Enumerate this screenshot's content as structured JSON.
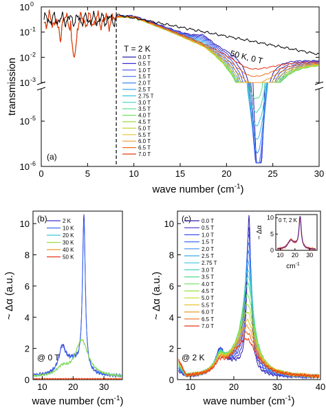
{
  "figure": {
    "panels": [
      "a",
      "b",
      "c"
    ]
  },
  "chart_data": [
    {
      "panel": "(a)",
      "type": "line",
      "xlabel": "wave number (cm",
      "xlabel_sup": "-1",
      "xlabel_end": ")",
      "ylabel": "transmission",
      "xlim": [
        0,
        30
      ],
      "y_scale": "log (broken axis)",
      "y_upper_range": [
        0.001,
        1
      ],
      "y_lower_range": [
        1e-06,
        0.0001
      ],
      "x_ticks": [
        "0",
        "5",
        "10",
        "15",
        "20",
        "25",
        "30"
      ],
      "y_upper_ticks": [
        "10",
        "10",
        "10",
        "10"
      ],
      "y_upper_exps": [
        "0",
        "-1",
        "-2",
        "-3"
      ],
      "y_lower_ticks": [
        "10",
        "10"
      ],
      "y_lower_exps": [
        "-5",
        "-6"
      ],
      "dashed_vline_x": 8.1,
      "annotations": {
        "temp": "T = 2 K",
        "ref": "50 K, 0 T"
      },
      "legend": [
        "0.0 T",
        "0.5 T",
        "1.0 T",
        "1.5 T",
        "2.0 T",
        "2.5 T",
        "2.75 T",
        "3.0 T",
        "3.5 T",
        "4.0 T",
        "4.5 T",
        "5.0 T",
        "5.5 T",
        "6.0 T",
        "6.5 T",
        "7.0 T"
      ],
      "colors": [
        "#2b1ea8",
        "#3a2fd0",
        "#3f4de6",
        "#3c6cf0",
        "#3b8bf2",
        "#3aa8ee",
        "#3cc3dc",
        "#3fd3b8",
        "#50da8a",
        "#6ee05e",
        "#98e03c",
        "#c3d834",
        "#e6c22c",
        "#f09a24",
        "#ee6a1c",
        "#e43418"
      ],
      "series": [
        {
          "name": "50 K, 0 T",
          "x": [
            8,
            10,
            12,
            14,
            16,
            18,
            20,
            22,
            24,
            26,
            28,
            30
          ],
          "y": [
            0.55,
            0.48,
            0.42,
            0.35,
            0.26,
            0.18,
            0.12,
            0.085,
            0.06,
            0.04,
            0.025,
            0.013
          ]
        },
        {
          "name": "0.0 T",
          "x": [
            8,
            10,
            12,
            14,
            15,
            16,
            17,
            18,
            19,
            20,
            21,
            22,
            22.5,
            23,
            23.5,
            24,
            24.5,
            25,
            26,
            27,
            28,
            29,
            30
          ],
          "y": [
            0.45,
            0.35,
            0.25,
            0.12,
            0.06,
            0.025,
            0.015,
            0.02,
            0.03,
            0.035,
            0.025,
            0.01,
            0.002,
            0.0001,
            9e-07,
            5e-05,
            0.0015,
            0.004,
            0.008,
            0.01,
            0.01,
            0.01,
            0.01
          ]
        },
        {
          "name": "7.0 T",
          "x": [
            8,
            10,
            12,
            14,
            15,
            16,
            17,
            18,
            19,
            20,
            21,
            22,
            23,
            24,
            25,
            26,
            27,
            28,
            29,
            30
          ],
          "y": [
            0.45,
            0.35,
            0.25,
            0.12,
            0.06,
            0.03,
            0.02,
            0.017,
            0.015,
            0.012,
            0.009,
            0.006,
            0.005,
            0.006,
            0.008,
            0.01,
            0.011,
            0.011,
            0.011,
            0.011
          ]
        }
      ]
    },
    {
      "panel": "(b)",
      "type": "line",
      "xlabel": "wave number (cm",
      "xlabel_sup": "-1",
      "xlabel_end": ")",
      "ylabel": "~ Δα (a.u.)",
      "xlim": [
        7,
        36
      ],
      "ylim": [
        0,
        10.8
      ],
      "x_ticks": [
        "10",
        "20",
        "30"
      ],
      "y_ticks": [
        "0",
        "2",
        "4",
        "6",
        "8",
        "10"
      ],
      "annotation": "@ 0 T",
      "legend": [
        "2 K",
        "10 K",
        "20 K",
        "30 K",
        "40 K",
        "50 K"
      ],
      "colors": [
        "#3a2fd0",
        "#3c6cf0",
        "#3cc3dc",
        "#98e03c",
        "#f09a24",
        "#e43418"
      ],
      "series": [
        {
          "name": "2 K",
          "x": [
            8,
            12,
            14,
            16,
            17,
            18,
            20,
            22,
            23,
            23.5,
            24,
            25,
            27,
            30,
            35
          ],
          "y": [
            0.2,
            0.6,
            1.3,
            2.0,
            1.9,
            1.6,
            1.3,
            2.2,
            6.5,
            10.3,
            6.0,
            2.0,
            0.8,
            0.3,
            0.2
          ]
        },
        {
          "name": "10 K",
          "x": [
            8,
            12,
            14,
            16,
            17,
            18,
            20,
            22,
            23,
            23.5,
            24,
            25,
            27,
            30,
            35
          ],
          "y": [
            0.2,
            0.6,
            1.2,
            1.9,
            1.8,
            1.5,
            1.2,
            2.1,
            6.2,
            10.0,
            5.8,
            1.9,
            0.8,
            0.3,
            0.2
          ]
        },
        {
          "name": "20 K",
          "x": [
            8,
            12,
            16,
            20,
            22,
            23,
            24,
            26,
            30,
            35
          ],
          "y": [
            0.2,
            0.3,
            0.6,
            1.5,
            2.2,
            2.5,
            2.0,
            1.2,
            0.5,
            0.2
          ]
        },
        {
          "name": "30 K",
          "x": [
            8,
            12,
            16,
            20,
            22,
            23,
            24,
            26,
            30,
            35
          ],
          "y": [
            0.15,
            0.25,
            0.5,
            1.4,
            2.1,
            2.5,
            2.1,
            1.2,
            0.5,
            0.2
          ]
        },
        {
          "name": "40 K",
          "x": [
            8,
            35
          ],
          "y": [
            0.05,
            0.05
          ]
        },
        {
          "name": "50 K",
          "x": [
            8,
            35
          ],
          "y": [
            0.02,
            0.02
          ]
        }
      ]
    },
    {
      "panel": "(c)",
      "type": "line",
      "xlabel": "wave number (cm",
      "xlabel_sup": "-1",
      "xlabel_end": ")",
      "ylabel": "~ Δα (a.u.)",
      "xlim": [
        7,
        40
      ],
      "ylim": [
        0,
        10.8
      ],
      "x_ticks": [
        "10",
        "20",
        "30",
        "40"
      ],
      "y_ticks": [
        "0",
        "2",
        "4",
        "6",
        "8",
        "10"
      ],
      "annotation": "@ 2 K",
      "legend": [
        "0.0 T",
        "0.5 T",
        "1.0 T",
        "1.5 T",
        "2.0 T",
        "2.5 T",
        "2.75 T",
        "3.0 T",
        "3.5 T",
        "4.0 T",
        "4.5 T",
        "5.0 T",
        "5.5 T",
        "6.0 T",
        "6.5 T",
        "7.0 T"
      ],
      "colors": [
        "#2b1ea8",
        "#3a2fd0",
        "#3f4de6",
        "#3c6cf0",
        "#3b8bf2",
        "#3aa8ee",
        "#3cc3dc",
        "#3fd3b8",
        "#50da8a",
        "#6ee05e",
        "#98e03c",
        "#c3d834",
        "#e6c22c",
        "#f09a24",
        "#ee6a1c",
        "#e43418"
      ],
      "peak_heights": [
        10.3,
        9.6,
        9.2,
        8.6,
        8.0,
        7.4,
        6.9,
        6.5,
        6.0,
        5.3,
        4.7,
        4.2,
        3.7,
        3.3,
        2.9,
        2.5
      ],
      "inset": {
        "label": "0 T, 2 K",
        "xlabel": "cm",
        "xlabel_sup": "-1",
        "ylabel": "~ Δα",
        "xlim": [
          7,
          35
        ],
        "ylim": [
          0,
          11
        ],
        "x_ticks": [
          "10",
          "20",
          "30"
        ],
        "y_ticks": [
          "0",
          "5",
          "10"
        ]
      }
    }
  ]
}
